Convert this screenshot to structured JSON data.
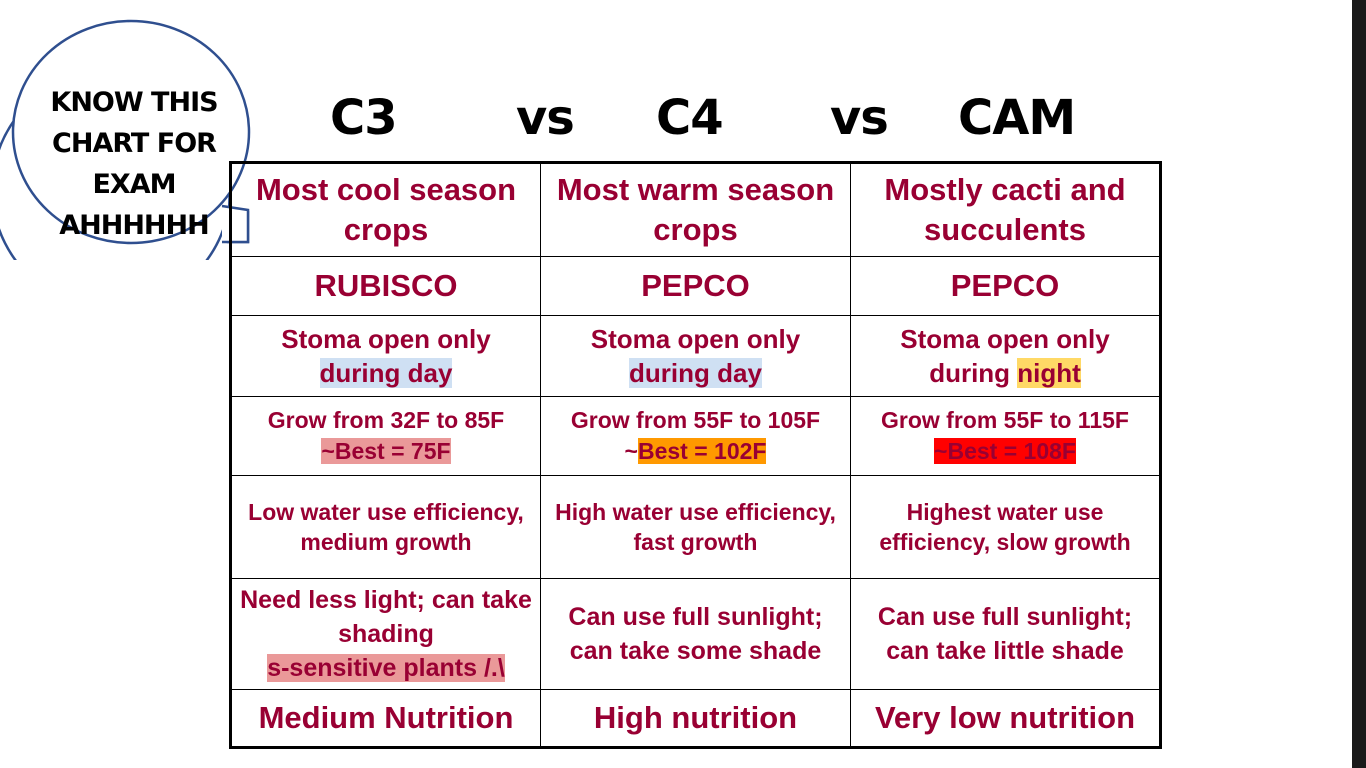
{
  "callout": {
    "lines": [
      "KNOW THIS",
      "CHART FOR",
      "EXAM",
      "AHHHHHH"
    ]
  },
  "title": {
    "c3": "C3",
    "vs1": "vs",
    "c4": "C4",
    "vs2": "vs",
    "cam": "CAM"
  },
  "table": {
    "crops": {
      "c3": "Most cool season crops",
      "c4": "Most warm season crops",
      "cam": "Mostly cacti and succulents"
    },
    "enzyme": {
      "c3": "RUBISCO",
      "c4": "PEPCO",
      "cam": "PEPCO"
    },
    "stoma": {
      "c3": {
        "line1": "Stoma open only",
        "line2": "during day"
      },
      "c4": {
        "line1": "Stoma open only",
        "line2": "during day"
      },
      "cam": {
        "line1": "Stoma open only",
        "line2a": "during ",
        "line2b": "night"
      }
    },
    "temperature": {
      "c3": {
        "range": "Grow from 32F to 85F",
        "best": "~Best = 75F"
      },
      "c4": {
        "range": "Grow from 55F to 105F",
        "tilde": "~",
        "best": "Best = 102F"
      },
      "cam": {
        "range": "Grow from 55F to 115F",
        "best": "~Best = 108F"
      }
    },
    "water": {
      "c3": "Low water use efficiency, medium growth",
      "c4": "High water use efficiency, fast growth",
      "cam": "Highest water use efficiency, slow growth"
    },
    "light": {
      "c3": {
        "text": "Need less light; can take shading",
        "note": "s-sensitive plants /.\\"
      },
      "c4": "Can use full sunlight; can take some shade",
      "cam": "Can use full sunlight; can take little shade"
    },
    "nutrition": {
      "c3": "Medium Nutrition",
      "c4": "High nutrition",
      "cam": "Very low nutrition"
    }
  },
  "colors": {
    "text": "#990033",
    "highlight_day": "#cfe0f3",
    "highlight_night": "#ffd966",
    "highlight_c3_best": "#ea9999",
    "highlight_c4_best": "#ff9900",
    "highlight_cam_best": "#ff0000",
    "callout_border": "#2f4f8f"
  }
}
